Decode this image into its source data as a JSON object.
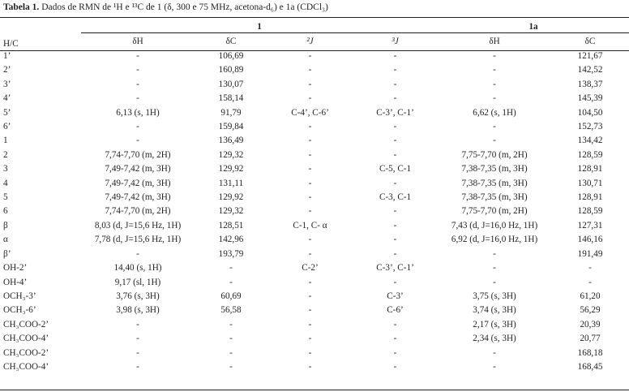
{
  "caption": {
    "bold": "Tabela 1.",
    "text": "Dados de RMN de ¹H e ¹³C de 1 (δ, 300 e 75 MHz, acetona-d₆) e 1a (CDCl₃)"
  },
  "header": {
    "hc": "H/C",
    "compound1": "1",
    "compound1a": "1a",
    "cols": [
      "δH",
      "δC",
      "²J",
      "³J",
      "δH",
      "δC"
    ]
  },
  "rows": [
    {
      "label": "1’",
      "c1": [
        "-",
        "106,69",
        "-",
        "-"
      ],
      "c1a": [
        "-",
        "121,67"
      ]
    },
    {
      "label": "2’",
      "c1": [
        "-",
        "160,89",
        "-",
        "-"
      ],
      "c1a": [
        "-",
        "142,52"
      ]
    },
    {
      "label": "3’",
      "c1": [
        "-",
        "130,07",
        "-",
        "-"
      ],
      "c1a": [
        "-",
        "138,37"
      ]
    },
    {
      "label": "4’",
      "c1": [
        "-",
        "158,14",
        "-",
        "-"
      ],
      "c1a": [
        "-",
        "145,39"
      ]
    },
    {
      "label": "5’",
      "c1": [
        "6,13 (s, 1H)",
        "91,79",
        "C-4’, C-6’",
        "C-3’, C-1’"
      ],
      "c1a": [
        "6,62 (s, 1H)",
        "104,50"
      ]
    },
    {
      "label": "6’",
      "c1": [
        "-",
        "159,84",
        "-",
        "-"
      ],
      "c1a": [
        "-",
        "152,73"
      ]
    },
    {
      "label": "1",
      "c1": [
        "-",
        "136,49",
        "-",
        "-"
      ],
      "c1a": [
        "-",
        "134,42"
      ]
    },
    {
      "label": "2",
      "c1": [
        "7,74-7,70 (m, 2H)",
        "129,32",
        "-",
        "-"
      ],
      "c1a": [
        "7,75-7,70 (m, 2H)",
        "128,59"
      ]
    },
    {
      "label": "3",
      "c1": [
        "7,49-7,42 (m, 3H)",
        "129,92",
        "-",
        "C-5, C-1"
      ],
      "c1a": [
        "7,38-7,35 (m, 3H)",
        "128,91"
      ]
    },
    {
      "label": "4",
      "c1": [
        "7,49-7,42 (m, 3H)",
        "131,11",
        "-",
        "-"
      ],
      "c1a": [
        "7,38-7,35 (m, 3H)",
        "130,71"
      ]
    },
    {
      "label": "5",
      "c1": [
        "7,49-7,42 (m, 3H)",
        "129,92",
        "-",
        "C-3, C-1"
      ],
      "c1a": [
        "7,38-7,35 (m, 3H)",
        "128,91"
      ]
    },
    {
      "label": "6",
      "c1": [
        "7,74-7,70 (m, 2H)",
        "129,32",
        "-",
        "-"
      ],
      "c1a": [
        "7,75-7,70 (m, 2H)",
        "128,59"
      ]
    },
    {
      "label": "β",
      "c1": [
        "8,03 (d, J=15,6 Hz, 1H)",
        "128,51",
        "C-1, C- α",
        "-"
      ],
      "c1a": [
        "7,43 (d, J=16,0 Hz, 1H)",
        "127,31"
      ]
    },
    {
      "label": "α",
      "c1": [
        "7,78 (d, J=15,6 Hz, 1H)",
        "142,96",
        "-",
        "-"
      ],
      "c1a": [
        "6,92 (d, J=16,0 Hz, 1H)",
        "146,16"
      ]
    },
    {
      "label": "β’",
      "c1": [
        "-",
        "193,79",
        "-",
        "-"
      ],
      "c1a": [
        "-",
        "191,49"
      ]
    },
    {
      "label": "OH-2’",
      "c1": [
        "14,40 (s, 1H)",
        "-",
        "C-2’",
        "C-3’, C-1’"
      ],
      "c1a": [
        "-",
        "-"
      ]
    },
    {
      "label": "OH-4’",
      "c1": [
        "9,17 (sl, 1H)",
        "-",
        "-",
        "-"
      ],
      "c1a": [
        "-",
        "-"
      ]
    },
    {
      "label": "OCH₃-3’",
      "c1": [
        "3,76 (s, 3H)",
        "60,69",
        "-",
        "C-3’"
      ],
      "c1a": [
        "3,75 (s, 3H)",
        "61,20"
      ]
    },
    {
      "label": "OCH₃-6’",
      "c1": [
        "3,98 (s, 3H)",
        "56,58",
        "-",
        "C-6’"
      ],
      "c1a": [
        "3,74 (s, 3H)",
        "56,29"
      ]
    },
    {
      "label": "CH₃COO-2’",
      "c1": [
        "-",
        "-",
        "-",
        "-"
      ],
      "c1a": [
        "2,17 (s, 3H)",
        "20,39"
      ]
    },
    {
      "label": "CH₃COO-4’",
      "c1": [
        "-",
        "-",
        "-",
        "-"
      ],
      "c1a": [
        "2,34 (s, 3H)",
        "20,77"
      ]
    },
    {
      "label": "CH₃COO-2’",
      "c1": [
        "-",
        "-",
        "-",
        "-"
      ],
      "c1a": [
        "-",
        "168,18"
      ]
    },
    {
      "label": "CH₃COO-4’",
      "c1": [
        "-",
        "-",
        "-",
        "-"
      ],
      "c1a": [
        "-",
        "168,45"
      ]
    }
  ]
}
